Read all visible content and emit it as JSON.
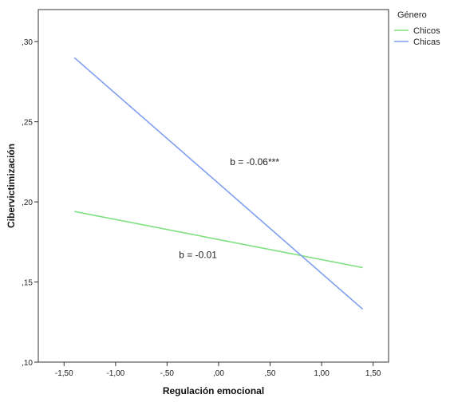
{
  "chart_data": {
    "type": "line",
    "title": "",
    "xlabel": "Regulación emocional",
    "ylabel": "Cibervictimización",
    "xlim": [
      -1.75,
      1.65
    ],
    "ylim": [
      0.1,
      0.32
    ],
    "x_ticks": [
      -1.5,
      -1.0,
      -0.5,
      0.0,
      0.5,
      1.0,
      1.5
    ],
    "x_tick_labels": [
      "-1,50",
      "-1,00",
      "-,50",
      ",00",
      ",50",
      "1,00",
      "1,50"
    ],
    "y_ticks": [
      0.1,
      0.15,
      0.2,
      0.25,
      0.3
    ],
    "y_tick_labels": [
      ",10",
      ",15",
      ",20",
      ",25",
      ",30"
    ],
    "grid": false,
    "legend": {
      "title": "Género",
      "placement": "top-right-outside"
    },
    "series": [
      {
        "name": "Chicos",
        "color": "#7fe07f",
        "x": [
          -1.4,
          1.4
        ],
        "y": [
          0.194,
          0.159
        ]
      },
      {
        "name": "Chicas",
        "color": "#7f9ff0",
        "x": [
          -1.4,
          1.4
        ],
        "y": [
          0.29,
          0.133
        ]
      }
    ],
    "annotations": [
      {
        "text": "b = -0.06***",
        "x": 0.35,
        "y": 0.225
      },
      {
        "text": "b = -0.01",
        "x": -0.2,
        "y": 0.167
      }
    ]
  }
}
